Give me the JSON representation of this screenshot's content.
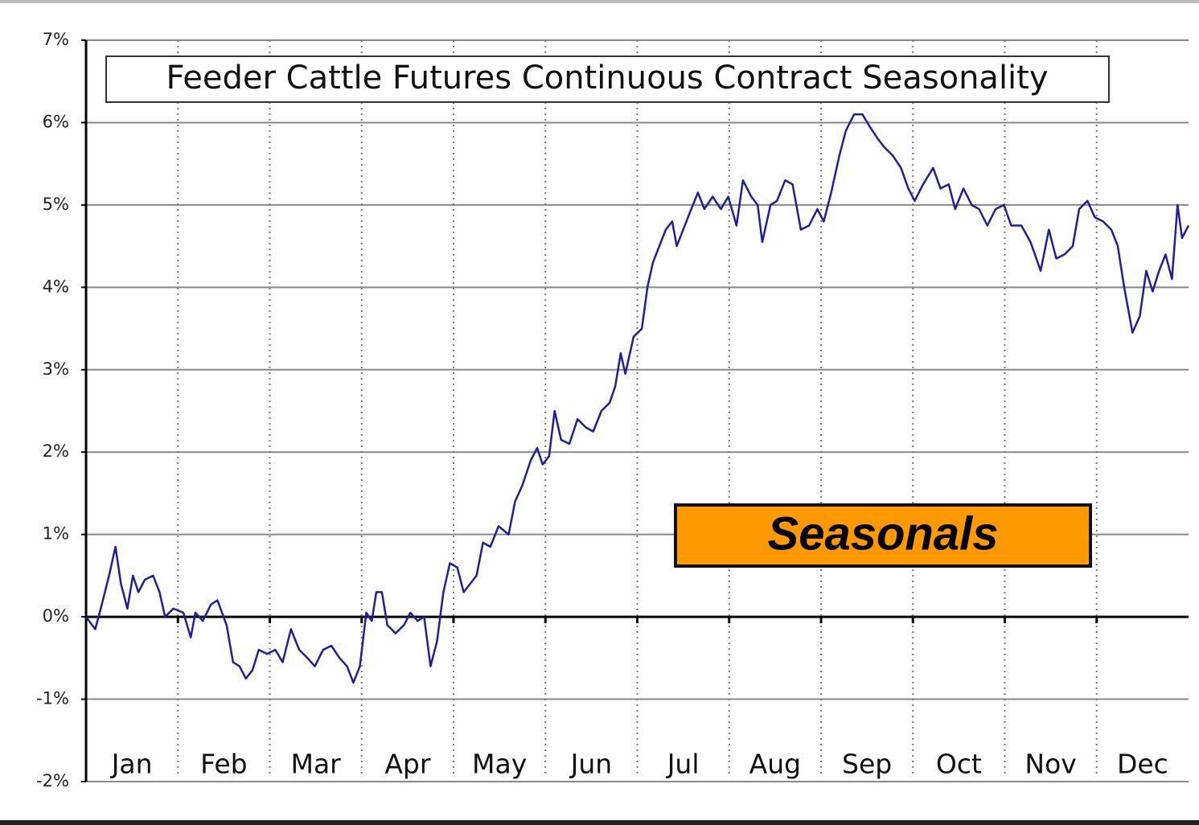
{
  "chart_data": {
    "type": "line",
    "title": "Feeder Cattle Futures Continuous Contract Seasonality",
    "annotation": "Seasonals",
    "categories": [
      "Jan",
      "Feb",
      "Mar",
      "Apr",
      "May",
      "Jun",
      "Jul",
      "Aug",
      "Sep",
      "Oct",
      "Nov",
      "Dec"
    ],
    "xlim": [
      0,
      12
    ],
    "ylim": [
      -2,
      7
    ],
    "yticks": [
      {
        "value": 7,
        "label": "7%"
      },
      {
        "value": 6,
        "label": "6%"
      },
      {
        "value": 5,
        "label": "5%"
      },
      {
        "value": 4,
        "label": "4%"
      },
      {
        "value": 3,
        "label": "3%"
      },
      {
        "value": 2,
        "label": "2%"
      },
      {
        "value": 1,
        "label": "1%"
      },
      {
        "value": 0,
        "label": "0%"
      },
      {
        "value": -1,
        "label": "-1%"
      },
      {
        "value": -2,
        "label": "-2%"
      }
    ],
    "grid": true,
    "color": "#1f1f99",
    "x": [
      0,
      0.1,
      0.16,
      0.25,
      0.32,
      0.38,
      0.45,
      0.51,
      0.57,
      0.64,
      0.73,
      0.8,
      0.86,
      0.95,
      1.06,
      1.14,
      1.19,
      1.27,
      1.36,
      1.43,
      1.53,
      1.6,
      1.67,
      1.74,
      1.81,
      1.88,
      1.97,
      2.06,
      2.14,
      2.23,
      2.32,
      2.41,
      2.49,
      2.58,
      2.67,
      2.76,
      2.84,
      2.91,
      2.98,
      3.05,
      3.11,
      3.16,
      3.22,
      3.28,
      3.37,
      3.46,
      3.53,
      3.61,
      3.68,
      3.75,
      3.82,
      3.89,
      3.96,
      4.04,
      4.11,
      4.18,
      4.25,
      4.32,
      4.4,
      4.49,
      4.6,
      4.67,
      4.75,
      4.84,
      4.91,
      4.97,
      5.04,
      5.1,
      5.17,
      5.26,
      5.35,
      5.44,
      5.52,
      5.61,
      5.7,
      5.76,
      5.82,
      5.87,
      5.96,
      6.05,
      6.11,
      6.17,
      6.24,
      6.31,
      6.38,
      6.43,
      6.5,
      6.57,
      6.66,
      6.73,
      6.82,
      6.91,
      6.99,
      7.08,
      7.15,
      7.24,
      7.31,
      7.36,
      7.45,
      7.52,
      7.61,
      7.69,
      7.78,
      7.87,
      7.96,
      8.03,
      8.11,
      8.2,
      8.27,
      8.36,
      8.45,
      8.53,
      8.62,
      8.69,
      8.78,
      8.87,
      8.95,
      9.02,
      9.11,
      9.22,
      9.3,
      9.39,
      9.46,
      9.55,
      9.64,
      9.72,
      9.81,
      9.9,
      9.99,
      10.07,
      10.18,
      10.28,
      10.39,
      10.48,
      10.56,
      10.65,
      10.74,
      10.81,
      10.9,
      10.98,
      11.07,
      11.16,
      11.23,
      11.3,
      11.39,
      11.47,
      11.54,
      11.61,
      11.68,
      11.75,
      11.82,
      11.88,
      11.93,
      12.0
    ],
    "values": [
      0,
      -0.15,
      0.1,
      0.5,
      0.85,
      0.4,
      0.1,
      0.5,
      0.3,
      0.45,
      0.5,
      0.3,
      0,
      0.1,
      0.05,
      -0.25,
      0.05,
      -0.05,
      0.15,
      0.2,
      -0.1,
      -0.55,
      -0.6,
      -0.75,
      -0.65,
      -0.4,
      -0.45,
      -0.4,
      -0.55,
      -0.15,
      -0.4,
      -0.5,
      -0.6,
      -0.4,
      -0.35,
      -0.5,
      -0.6,
      -0.8,
      -0.6,
      0.05,
      -0.05,
      0.3,
      0.3,
      -0.1,
      -0.2,
      -0.1,
      0.05,
      -0.05,
      0,
      -0.6,
      -0.3,
      0.3,
      0.65,
      0.6,
      0.3,
      0.4,
      0.5,
      0.9,
      0.85,
      1.1,
      1.0,
      1.4,
      1.6,
      1.9,
      2.05,
      1.85,
      1.95,
      2.5,
      2.15,
      2.1,
      2.4,
      2.3,
      2.25,
      2.5,
      2.6,
      2.8,
      3.2,
      2.95,
      3.4,
      3.5,
      4.0,
      4.3,
      4.5,
      4.7,
      4.8,
      4.5,
      4.7,
      4.9,
      5.15,
      4.95,
      5.1,
      4.95,
      5.1,
      4.75,
      5.3,
      5.1,
      5.0,
      4.55,
      5.0,
      5.05,
      5.3,
      5.25,
      4.7,
      4.75,
      4.95,
      4.8,
      5.15,
      5.6,
      5.9,
      6.1,
      6.1,
      5.95,
      5.8,
      5.7,
      5.6,
      5.45,
      5.2,
      5.05,
      5.25,
      5.45,
      5.2,
      5.25,
      4.95,
      5.2,
      5.0,
      4.95,
      4.75,
      4.95,
      5.0,
      4.75,
      4.75,
      4.55,
      4.2,
      4.7,
      4.35,
      4.4,
      4.5,
      4.95,
      5.05,
      4.85,
      4.8,
      4.7,
      4.5,
      4.0,
      3.45,
      3.65,
      4.2,
      3.95,
      4.2,
      4.4,
      4.1,
      5.0,
      4.6,
      4.75
    ]
  }
}
